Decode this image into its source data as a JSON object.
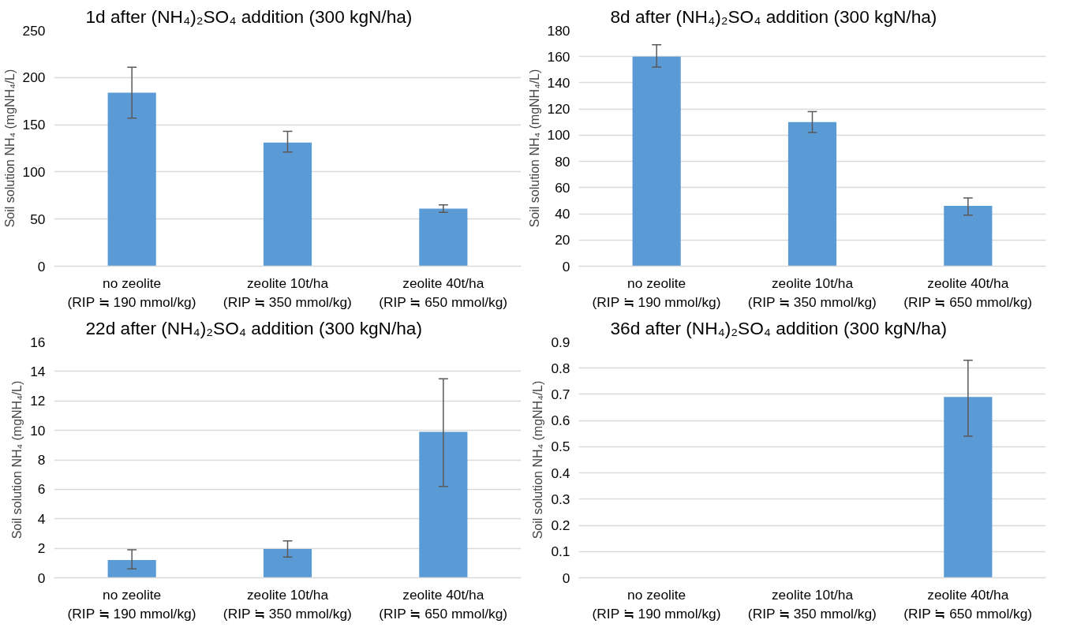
{
  "chart_data": [
    {
      "type": "bar",
      "title": "1d after (NH₄)₂SO₄ addition (300 kgN/ha)",
      "ylabel": "Soil solution NH₄ (mgNH₄/L)",
      "categories": [
        "no zeolite\n(RIP ≒ 190 mmol/kg)",
        "zeolite 10t/ha\n(RIP ≒ 350 mmol/kg)",
        "zeolite 40t/ha\n(RIP ≒ 650 mmol/kg)"
      ],
      "color": "#5b9bd5",
      "values": [
        184,
        131,
        61
      ],
      "errors": [
        [
          157,
          211
        ],
        [
          121,
          143
        ],
        [
          57,
          65
        ]
      ],
      "ylim": [
        0,
        250
      ],
      "yticks": [
        0,
        50,
        100,
        150,
        200,
        250
      ],
      "grid": "y"
    },
    {
      "type": "bar",
      "title": "8d after (NH₄)₂SO₄ addition (300 kgN/ha)",
      "ylabel": "Soil solution NH₄ (mgNH₄/L)",
      "categories": [
        "no zeolite\n(RIP ≒ 190 mmol/kg)",
        "zeolite 10t/ha\n(RIP ≒ 350 mmol/kg)",
        "zeolite 40t/ha\n(RIP ≒ 650 mmol/kg)"
      ],
      "color": "#5b9bd5",
      "values": [
        160,
        110,
        46
      ],
      "errors": [
        [
          152,
          169
        ],
        [
          102,
          118
        ],
        [
          39,
          52
        ]
      ],
      "ylim": [
        0,
        180
      ],
      "yticks": [
        0,
        20,
        40,
        60,
        80,
        100,
        120,
        140,
        160,
        180
      ],
      "grid": "y"
    },
    {
      "type": "bar",
      "title": "22d after (NH₄)₂SO₄ addition (300 kgN/ha)",
      "ylabel": "Soil solution NH₄ (mgNH₄/L)",
      "categories": [
        "no zeolite\n(RIP ≒ 190 mmol/kg)",
        "zeolite 10t/ha\n(RIP ≒ 350 mmol/kg)",
        "zeolite 40t/ha\n(RIP ≒ 650 mmol/kg)"
      ],
      "color": "#5b9bd5",
      "values": [
        1.2,
        1.95,
        9.9
      ],
      "errors": [
        [
          0.6,
          1.9
        ],
        [
          1.4,
          2.5
        ],
        [
          6.2,
          13.5
        ]
      ],
      "ylim": [
        0,
        16
      ],
      "yticks": [
        0,
        2,
        4,
        6,
        8,
        10,
        12,
        14,
        16
      ],
      "grid": "y"
    },
    {
      "type": "bar",
      "title": "36d after (NH₄)₂SO₄ addition (300 kgN/ha)",
      "ylabel": "Soil solution NH₄ (mgNH₄/L)",
      "categories": [
        "no zeolite\n(RIP ≒ 190 mmol/kg)",
        "zeolite 10t/ha\n(RIP ≒ 350 mmol/kg)",
        "zeolite 40t/ha\n(RIP ≒ 650 mmol/kg)"
      ],
      "color": "#5b9bd5",
      "values": [
        0,
        0,
        0.69
      ],
      "errors": [
        null,
        null,
        [
          0.54,
          0.83
        ]
      ],
      "ylim": [
        0,
        0.9
      ],
      "yticks": [
        0,
        0.1,
        0.2,
        0.3,
        0.4,
        0.5,
        0.6,
        0.7,
        0.8,
        0.9
      ],
      "grid": "y"
    }
  ]
}
